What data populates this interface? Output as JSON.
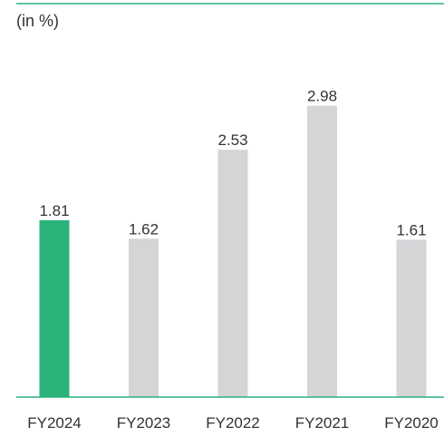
{
  "chart_data": {
    "type": "bar",
    "title": "",
    "unit_label": "(in %)",
    "xlabel": "",
    "ylabel": "",
    "ylim": [
      0,
      3.2
    ],
    "grid": false,
    "legend": "none",
    "categories": [
      "FY2024",
      "FY2023",
      "FY2022",
      "FY2021",
      "FY2020"
    ],
    "values": [
      1.81,
      1.62,
      2.53,
      2.98,
      1.61
    ],
    "value_labels": [
      "1.81",
      "1.62",
      "2.53",
      "2.98",
      "1.61"
    ],
    "colors": {
      "highlight": "#2bb37a",
      "default": "#d4d5d7",
      "axis": "#2bb37a",
      "text": "#333333"
    },
    "highlight_index": 0
  }
}
